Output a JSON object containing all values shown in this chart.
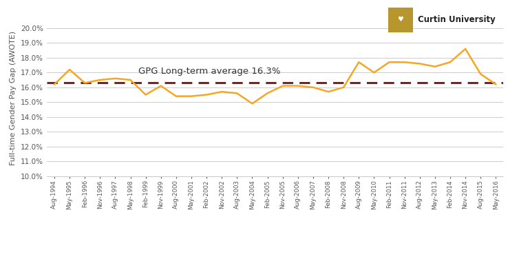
{
  "x_labels": [
    "Aug-1994",
    "May-1995",
    "Feb-1996",
    "Nov-1996",
    "Aug-1997",
    "May-1998",
    "Feb-1999",
    "Nov-1999",
    "Aug-2000",
    "May-2001",
    "Feb-2002",
    "Nov-2002",
    "Aug-2003",
    "May-2004",
    "Feb-2005",
    "Nov-2005",
    "Aug-2006",
    "May-2007",
    "Feb-2008",
    "Nov-2008",
    "Aug-2009",
    "May-2010",
    "Feb-2011",
    "Nov-2011",
    "Aug-2012",
    "May-2013",
    "Feb-2014",
    "Nov-2014",
    "Aug-2015",
    "May-2016"
  ],
  "values": [
    16.2,
    17.2,
    16.3,
    16.5,
    16.6,
    16.5,
    15.5,
    16.1,
    15.4,
    15.4,
    15.5,
    15.7,
    15.6,
    14.9,
    15.6,
    16.1,
    16.1,
    16.0,
    15.7,
    16.0,
    17.7,
    17.0,
    17.7,
    17.7,
    17.6,
    17.4,
    17.7,
    18.6,
    16.9,
    16.2
  ],
  "avg_line": 16.3,
  "avg_label": "GPG Long-term average 16.3%",
  "ylabel": "Full-time Gender Pay Gap (AWOTE)",
  "line_color": "#F5A623",
  "avg_color": "#8B1A1A",
  "ylim_min": 0.1,
  "ylim_max": 0.205,
  "yticks": [
    0.1,
    0.11,
    0.12,
    0.13,
    0.14,
    0.15,
    0.16,
    0.17,
    0.18,
    0.19,
    0.2
  ],
  "background_color": "#FFFFFF",
  "grid_color": "#CCCCCC",
  "text_color": "#555555",
  "bankwest_orange": "#F5A623",
  "curtin_gold": "#B8962E",
  "logo_text_color": "#222222"
}
